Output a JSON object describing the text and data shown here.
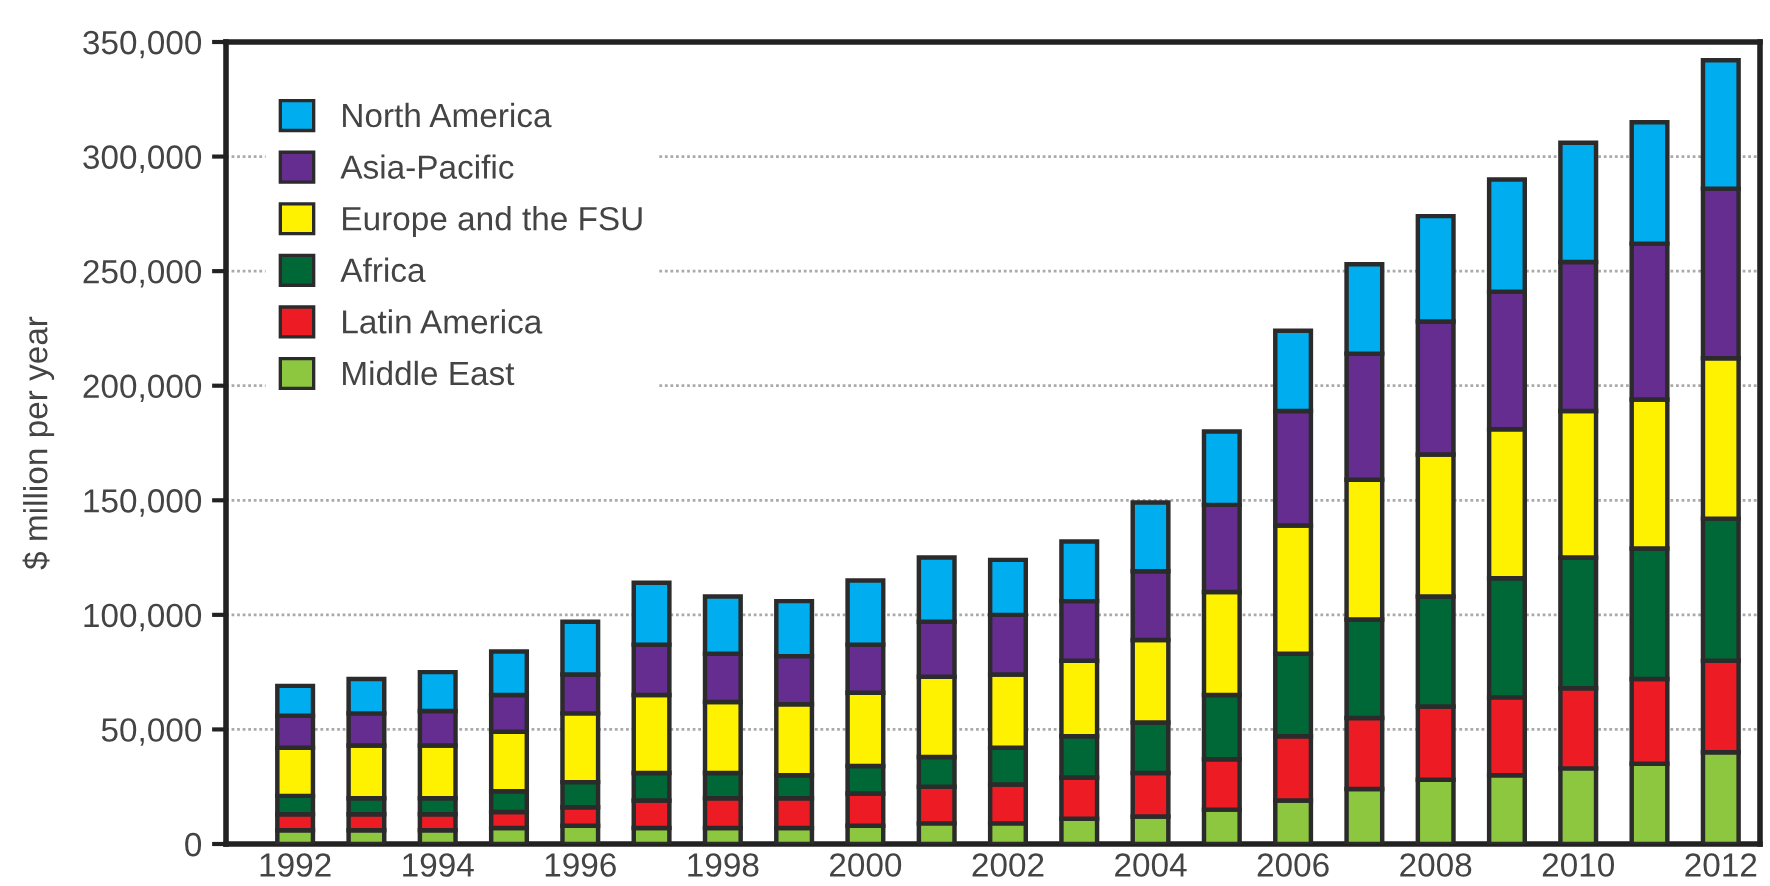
{
  "chart_data": {
    "type": "bar",
    "stacked": true,
    "ylabel": "$ million per year",
    "categories": [
      "1992",
      null,
      "1994",
      null,
      "1996",
      null,
      "1998",
      null,
      "2000",
      null,
      "2002",
      null,
      "2004",
      null,
      "2006",
      null,
      "2008",
      null,
      "2010",
      null,
      "2012"
    ],
    "series": [
      {
        "name": "Middle East",
        "color": "#8dc63f",
        "values": [
          6000,
          6000,
          6000,
          7000,
          8000,
          7000,
          7000,
          7000,
          8000,
          9000,
          9000,
          11000,
          12000,
          15000,
          19000,
          24000,
          28000,
          30000,
          33000,
          35000,
          40000
        ]
      },
      {
        "name": "Latin America",
        "color": "#ed1c24",
        "values": [
          7000,
          7000,
          7000,
          7000,
          8000,
          12000,
          13000,
          13000,
          14000,
          16000,
          17000,
          18000,
          19000,
          22000,
          28000,
          31000,
          32000,
          34000,
          35000,
          37000,
          40000
        ]
      },
      {
        "name": "Africa",
        "color": "#006837",
        "values": [
          8000,
          7000,
          7000,
          9000,
          11000,
          12000,
          11000,
          10000,
          12000,
          13000,
          16000,
          18000,
          22000,
          28000,
          36000,
          43000,
          48000,
          52000,
          57000,
          57000,
          62000
        ]
      },
      {
        "name": "Europe and the FSU",
        "color": "#fff200",
        "values": [
          21000,
          23000,
          23000,
          26000,
          30000,
          34000,
          31000,
          31000,
          32000,
          35000,
          32000,
          33000,
          36000,
          45000,
          56000,
          61000,
          62000,
          65000,
          64000,
          65000,
          70000
        ]
      },
      {
        "name": "Asia-Pacific",
        "color": "#662d91",
        "values": [
          14000,
          14000,
          15000,
          16000,
          17000,
          22000,
          21000,
          21000,
          21000,
          24000,
          26000,
          26000,
          30000,
          38000,
          50000,
          55000,
          58000,
          60000,
          65000,
          68000,
          74000
        ]
      },
      {
        "name": "North America",
        "color": "#00aeef",
        "values": [
          13000,
          15000,
          17000,
          19000,
          23000,
          27000,
          25000,
          24000,
          28000,
          28000,
          24000,
          26000,
          30000,
          32000,
          35000,
          39000,
          46000,
          49000,
          52000,
          53000,
          56000
        ]
      }
    ],
    "ylim": [
      0,
      350000
    ],
    "yticks": [
      {
        "value": 0,
        "label": "0"
      },
      {
        "value": 50000,
        "label": "50,000"
      },
      {
        "value": 100000,
        "label": "100,000"
      },
      {
        "value": 150000,
        "label": "150,000"
      },
      {
        "value": 200000,
        "label": "200,000"
      },
      {
        "value": 250000,
        "label": "250,000"
      },
      {
        "value": 300000,
        "label": "300,000"
      },
      {
        "value": 350000,
        "label": "350,000"
      }
    ],
    "grid": "y",
    "legend": "top left"
  }
}
